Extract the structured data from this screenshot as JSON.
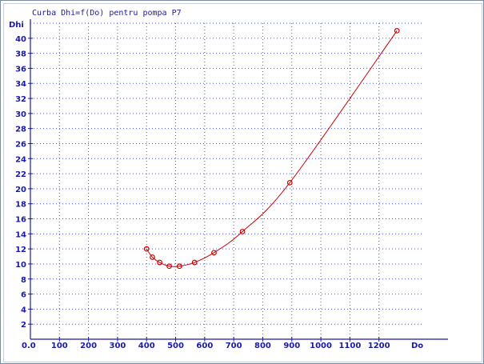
{
  "window": {
    "frame_color": "#7a8aa0"
  },
  "chart_data": {
    "type": "line",
    "title": "Curba Dhi=f(Do) pentru pompa P7",
    "xlabel": "Do",
    "ylabel": "Dhi",
    "xlim": [
      0,
      1300
    ],
    "ylim": [
      0,
      42
    ],
    "x_ticks": [
      0,
      100,
      200,
      300,
      400,
      500,
      600,
      700,
      800,
      900,
      1000,
      1100,
      1200
    ],
    "x_tick_labels": [
      "0.0",
      "100",
      "200",
      "300",
      "400",
      "500",
      "600",
      "700",
      "800",
      "900",
      "1000",
      "1100",
      "1200"
    ],
    "y_ticks": [
      2,
      4,
      6,
      8,
      10,
      12,
      14,
      16,
      18,
      20,
      22,
      24,
      26,
      28,
      30,
      32,
      34,
      36,
      38,
      40
    ],
    "y_tick_labels": [
      "2",
      "4",
      "6",
      "8",
      "10",
      "12",
      "14",
      "16",
      "18",
      "20",
      "22",
      "24",
      "26",
      "28",
      "30",
      "32",
      "34",
      "36",
      "38",
      "40"
    ],
    "grid": true,
    "series": [
      {
        "color": "#cc0000",
        "marker": "circle",
        "x": [
          400,
          420,
          445,
          478,
          513,
          565,
          632,
          730,
          893,
          1262
        ],
        "y": [
          12.0,
          10.9,
          10.2,
          9.7,
          9.7,
          10.2,
          11.5,
          14.3,
          20.8,
          41.0
        ]
      }
    ],
    "colors": {
      "axis": "#1a1aa8",
      "grid": "#4a5ad0",
      "text": "#1a1aa8"
    }
  }
}
